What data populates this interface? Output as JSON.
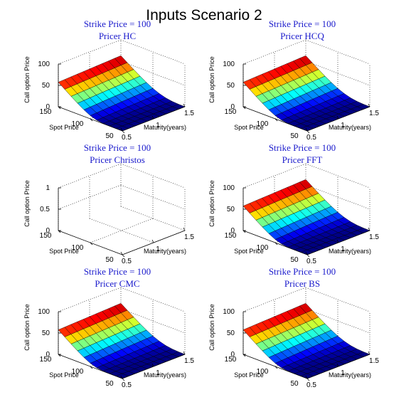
{
  "figure": {
    "title": "Inputs Scenario 2"
  },
  "chart_data": [
    {
      "type": "surface",
      "title_line1": "Strike Price = 100",
      "title_line2": "Pricer HC",
      "xlabel": "Maturity(years)",
      "ylabel": "Spot Price",
      "zlabel": "Call option Price",
      "xticks": [
        "0.5",
        "1",
        "1.5"
      ],
      "yticks": [
        "150",
        "100",
        "50"
      ],
      "zticks": [
        "100",
        "50",
        "0"
      ],
      "zlim": [
        0,
        100
      ],
      "x": [
        0.5,
        0.6,
        0.7,
        0.8,
        0.9,
        1.0,
        1.1,
        1.2,
        1.3,
        1.4,
        1.5
      ],
      "y": [
        150,
        140,
        130,
        120,
        110,
        100,
        90,
        80,
        70,
        60,
        50
      ],
      "surface_description": "call price rising with spot from ~0 at 50 to ~58-63 at 150, slight increase with maturity",
      "z_min": 0,
      "z_max": 63,
      "colormap": "jet",
      "grid": true
    },
    {
      "type": "surface",
      "title_line1": "Strike Price = 100",
      "title_line2": "Pricer HCQ",
      "xlabel": "Maturity(years)",
      "ylabel": "Spot Price",
      "zlabel": "Call option Price",
      "xticks": [
        "0.5",
        "1",
        "1.5"
      ],
      "yticks": [
        "150",
        "100",
        "50"
      ],
      "zticks": [
        "100",
        "50",
        "0"
      ],
      "zlim": [
        0,
        100
      ],
      "x": [
        0.5,
        0.6,
        0.7,
        0.8,
        0.9,
        1.0,
        1.1,
        1.2,
        1.3,
        1.4,
        1.5
      ],
      "y": [
        150,
        140,
        130,
        120,
        110,
        100,
        90,
        80,
        70,
        60,
        50
      ],
      "z_min": 0,
      "z_max": 63,
      "colormap": "jet",
      "grid": true
    },
    {
      "type": "surface",
      "title_line1": "Strike Price = 100",
      "title_line2": "Pricer Christos",
      "xlabel": "Maturity(years)",
      "ylabel": "Spot Price",
      "zlabel": "Call option Price",
      "xticks": [
        "0.5",
        "1",
        "1.5"
      ],
      "yticks": [
        "150",
        "100",
        "50"
      ],
      "zticks": [
        "1",
        "0.5",
        "0"
      ],
      "zlim": [
        0,
        1
      ],
      "empty": true,
      "grid": true
    },
    {
      "type": "surface",
      "title_line1": "Strike Price = 100",
      "title_line2": "Pricer FFT",
      "xlabel": "Maturity(years)",
      "ylabel": "Spot Price",
      "zlabel": "Call option Price",
      "xticks": [
        "0.5",
        "1",
        "1.5"
      ],
      "yticks": [
        "150",
        "100",
        "50"
      ],
      "zticks": [
        "100",
        "50",
        "0"
      ],
      "zlim": [
        0,
        100
      ],
      "x": [
        0.5,
        0.6,
        0.7,
        0.8,
        0.9,
        1.0,
        1.1,
        1.2,
        1.3,
        1.4,
        1.5
      ],
      "y": [
        150,
        140,
        130,
        120,
        110,
        100,
        90,
        80,
        70,
        60,
        50
      ],
      "z_min": 0,
      "z_max": 63,
      "colormap": "jet",
      "grid": true
    },
    {
      "type": "surface",
      "title_line1": "Strike Price = 100",
      "title_line2": "Pricer CMC",
      "xlabel": "Maturity(years)",
      "ylabel": "Spot Price",
      "zlabel": "Call option Price",
      "xticks": [
        "0.5",
        "1",
        "1.5"
      ],
      "yticks": [
        "150",
        "100",
        "50"
      ],
      "zticks": [
        "100",
        "50",
        "0"
      ],
      "zlim": [
        0,
        100
      ],
      "x": [
        0.5,
        0.6,
        0.7,
        0.8,
        0.9,
        1.0,
        1.1,
        1.2,
        1.3,
        1.4,
        1.5
      ],
      "y": [
        150,
        140,
        130,
        120,
        110,
        100,
        90,
        80,
        70,
        60,
        50
      ],
      "z_min": 0,
      "z_max": 63,
      "colormap": "jet",
      "grid": true
    },
    {
      "type": "surface",
      "title_line1": "Strike Price = 100",
      "title_line2": "Pricer BS",
      "xlabel": "Maturity(years)",
      "ylabel": "Spot Price",
      "zlabel": "Call option Price",
      "xticks": [
        "0.5",
        "1",
        "1.5"
      ],
      "yticks": [
        "150",
        "100",
        "50"
      ],
      "zticks": [
        "100",
        "50",
        "0"
      ],
      "zlim": [
        0,
        100
      ],
      "x": [
        0.5,
        0.6,
        0.7,
        0.8,
        0.9,
        1.0,
        1.1,
        1.2,
        1.3,
        1.4,
        1.5
      ],
      "y": [
        150,
        140,
        130,
        120,
        110,
        100,
        90,
        80,
        70,
        60,
        50
      ],
      "z_min": 0,
      "z_max": 63,
      "colormap": "jet",
      "grid": true
    }
  ]
}
